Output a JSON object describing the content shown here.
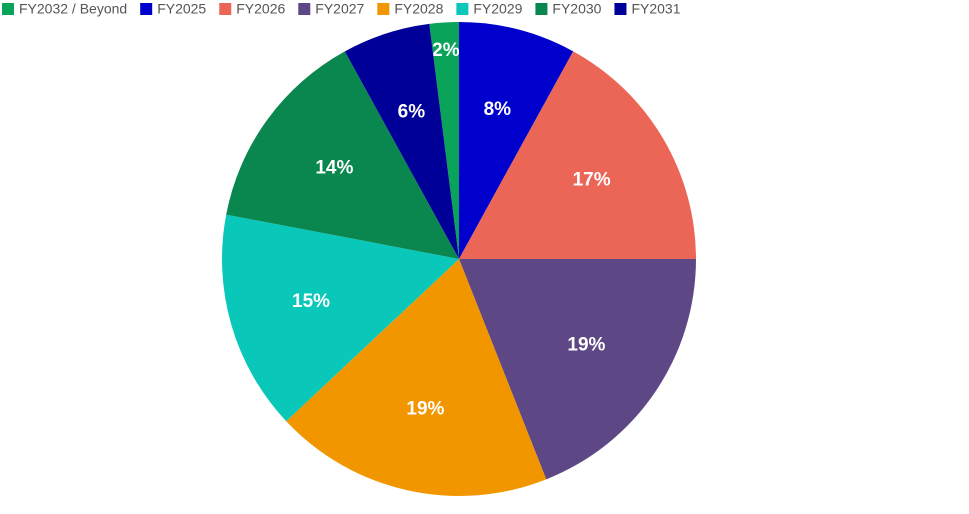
{
  "chart_data": {
    "type": "pie",
    "categories": [
      "FY2032 / Beyond",
      "FY2025",
      "FY2026",
      "FY2027",
      "FY2028",
      "FY2029",
      "FY2030",
      "FY2031"
    ],
    "values": [
      2,
      8,
      17,
      19,
      19,
      15,
      14,
      6
    ],
    "value_labels": [
      "2%",
      "8%",
      "17%",
      "19%",
      "19%",
      "15%",
      "14%",
      "6%"
    ],
    "colors": [
      "#0aa35a",
      "#0000cc",
      "#eb6657",
      "#5e4785",
      "#f29600",
      "#0ac8b9",
      "#0a874f",
      "#000099"
    ],
    "legend": "top"
  }
}
